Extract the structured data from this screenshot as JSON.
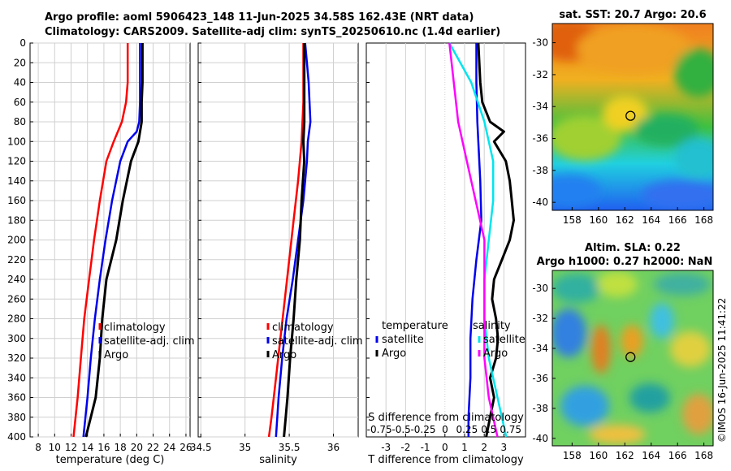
{
  "header": {
    "line1": "Argo profile: aoml 5906423_148 11-Jun-2025 34.58S 162.43E (NRT data)",
    "line2": "Climatology: CARS2009. Satellite-adj clim: synTS_20250610.nc (1.4d earlier)"
  },
  "credit": "©IMOS 16-Jun-2025 11:41:22",
  "colors": {
    "climatology": "#ff0000",
    "satellite": "#0000ee",
    "argo": "#000000",
    "sal_diff": "#ff00ff",
    "sat_sal_diff": "#00e5ee"
  },
  "chart_data": [
    {
      "type": "line",
      "title": "",
      "xlabel": "temperature (deg C)",
      "ylabel": "",
      "xlim": [
        7,
        26.5
      ],
      "ylim": [
        400,
        0
      ],
      "xticks": [
        "8",
        "10",
        "12",
        "14",
        "16",
        "18",
        "20",
        "22",
        "24",
        "26"
      ],
      "yticks": [
        "0",
        "20",
        "40",
        "60",
        "80",
        "100",
        "120",
        "140",
        "160",
        "180",
        "200",
        "220",
        "240",
        "260",
        "280",
        "300",
        "320",
        "340",
        "360",
        "380",
        "400"
      ],
      "legend": [
        "climatology",
        "satellite-adj. clim",
        "Argo"
      ],
      "series": [
        {
          "name": "climatology",
          "depth": [
            0,
            20,
            40,
            60,
            80,
            100,
            120,
            160,
            200,
            240,
            280,
            320,
            360,
            400
          ],
          "values": [
            18.9,
            18.9,
            18.9,
            18.7,
            18.2,
            17.2,
            16.3,
            15.5,
            14.8,
            14.2,
            13.6,
            13.2,
            12.8,
            12.3
          ]
        },
        {
          "name": "satellite-adj. clim",
          "depth": [
            0,
            20,
            40,
            60,
            80,
            90,
            100,
            120,
            160,
            200,
            240,
            280,
            320,
            360,
            400
          ],
          "values": [
            20.4,
            20.4,
            20.4,
            20.4,
            20.3,
            20.0,
            18.9,
            18.0,
            17.0,
            16.2,
            15.5,
            14.9,
            14.4,
            14.0,
            13.5
          ]
        },
        {
          "name": "Argo",
          "depth": [
            0,
            20,
            40,
            60,
            80,
            100,
            120,
            160,
            200,
            240,
            280,
            320,
            360,
            380,
            400
          ],
          "values": [
            20.7,
            20.7,
            20.7,
            20.6,
            20.6,
            20.2,
            19.3,
            18.3,
            17.5,
            16.3,
            15.8,
            15.5,
            15.0,
            14.4,
            13.8
          ]
        }
      ]
    },
    {
      "type": "line",
      "xlabel": "salinity",
      "xlim": [
        34.47,
        36.28
      ],
      "ylim": [
        400,
        0
      ],
      "xticks": [
        "34.5",
        "35",
        "35.5",
        "36"
      ],
      "legend": [
        "climatology",
        "satellite-adj. clim",
        "Argo"
      ],
      "series": [
        {
          "name": "climatology",
          "depth": [
            0,
            20,
            60,
            100,
            140,
            180,
            220,
            260,
            300,
            340,
            380,
            400
          ],
          "values": [
            35.66,
            35.66,
            35.66,
            35.64,
            35.6,
            35.55,
            35.5,
            35.45,
            35.4,
            35.35,
            35.3,
            35.27
          ]
        },
        {
          "name": "satellite-adj. clim",
          "depth": [
            0,
            20,
            40,
            60,
            80,
            100,
            120,
            160,
            200,
            240,
            280,
            320,
            360,
            400
          ],
          "values": [
            35.68,
            35.7,
            35.72,
            35.73,
            35.74,
            35.71,
            35.7,
            35.66,
            35.6,
            35.54,
            35.47,
            35.42,
            35.38,
            35.35
          ]
        },
        {
          "name": "Argo",
          "depth": [
            0,
            20,
            40,
            60,
            80,
            100,
            120,
            160,
            200,
            240,
            280,
            320,
            360,
            380,
            400
          ],
          "values": [
            35.67,
            35.67,
            35.67,
            35.67,
            35.67,
            35.66,
            35.67,
            35.64,
            35.62,
            35.58,
            35.55,
            35.51,
            35.48,
            35.46,
            35.44
          ]
        }
      ]
    },
    {
      "type": "line",
      "xlabel": "T difference from climatology",
      "xlim": [
        -4,
        4.1
      ],
      "ylim": [
        400,
        0
      ],
      "xticks": [
        "-3",
        "-2",
        "-1",
        "0",
        "1",
        "2",
        "3"
      ],
      "top_xlabel": "S difference from climatology",
      "top_xticks": [
        "-0.75",
        "-0.5",
        "-0.25",
        "0",
        "0.25",
        "0.5",
        "0.75"
      ],
      "legend_left_title": "temperature",
      "legend_right_title": "salinity",
      "legend": [
        "satellite",
        "Argo"
      ],
      "series": [
        {
          "name": "satellite",
          "depth": [
            0,
            40,
            80,
            100,
            140,
            180,
            220,
            260,
            300,
            340,
            380,
            400
          ],
          "values": [
            1.6,
            1.6,
            1.65,
            1.7,
            1.8,
            1.85,
            1.6,
            1.4,
            1.3,
            1.3,
            1.2,
            1.2
          ]
        },
        {
          "name": "Argo",
          "depth": [
            0,
            20,
            40,
            60,
            80,
            90,
            100,
            120,
            140,
            160,
            180,
            200,
            220,
            240,
            260,
            280,
            300,
            320,
            340,
            360,
            380,
            400
          ],
          "values": [
            1.7,
            1.75,
            1.8,
            1.9,
            2.3,
            3.0,
            2.5,
            3.1,
            3.3,
            3.4,
            3.5,
            3.3,
            2.9,
            2.5,
            2.4,
            2.6,
            2.7,
            2.6,
            2.3,
            2.5,
            2.3,
            2.1
          ]
        },
        {
          "name": "salinity satellite",
          "depth": [
            0,
            40,
            80,
            120,
            160,
            200,
            240,
            280,
            320,
            360,
            400
          ],
          "values": [
            0.05,
            0.3,
            0.45,
            0.55,
            0.55,
            0.5,
            0.45,
            0.45,
            0.5,
            0.6,
            0.7
          ]
        },
        {
          "name": "salinity Argo",
          "depth": [
            0,
            40,
            80,
            120,
            160,
            200,
            240,
            280,
            320,
            360,
            400
          ],
          "values": [
            0.05,
            0.1,
            0.15,
            0.25,
            0.35,
            0.45,
            0.45,
            0.45,
            0.45,
            0.5,
            0.6
          ]
        }
      ]
    },
    {
      "type": "heatmap",
      "title": "sat. SST: 20.7 Argo: 20.6",
      "xlim": [
        156.5,
        168.7
      ],
      "ylim": [
        -40.5,
        -28.8
      ],
      "xticks": [
        "158",
        "160",
        "162",
        "164",
        "166",
        "168"
      ],
      "yticks": [
        "-30",
        "-32",
        "-34",
        "-36",
        "-38",
        "-40"
      ],
      "marker": [
        162.43,
        -34.58
      ]
    },
    {
      "type": "heatmap",
      "title": "Altim. SLA: 0.22",
      "subtitle": "Argo h1000: 0.27 h2000: NaN",
      "xlim": [
        156.5,
        168.7
      ],
      "ylim": [
        -40.5,
        -28.8
      ],
      "xticks": [
        "158",
        "160",
        "162",
        "164",
        "166",
        "168"
      ],
      "yticks": [
        "-30",
        "-32",
        "-34",
        "-36",
        "-38",
        "-40"
      ],
      "marker": [
        162.43,
        -34.58
      ]
    }
  ]
}
